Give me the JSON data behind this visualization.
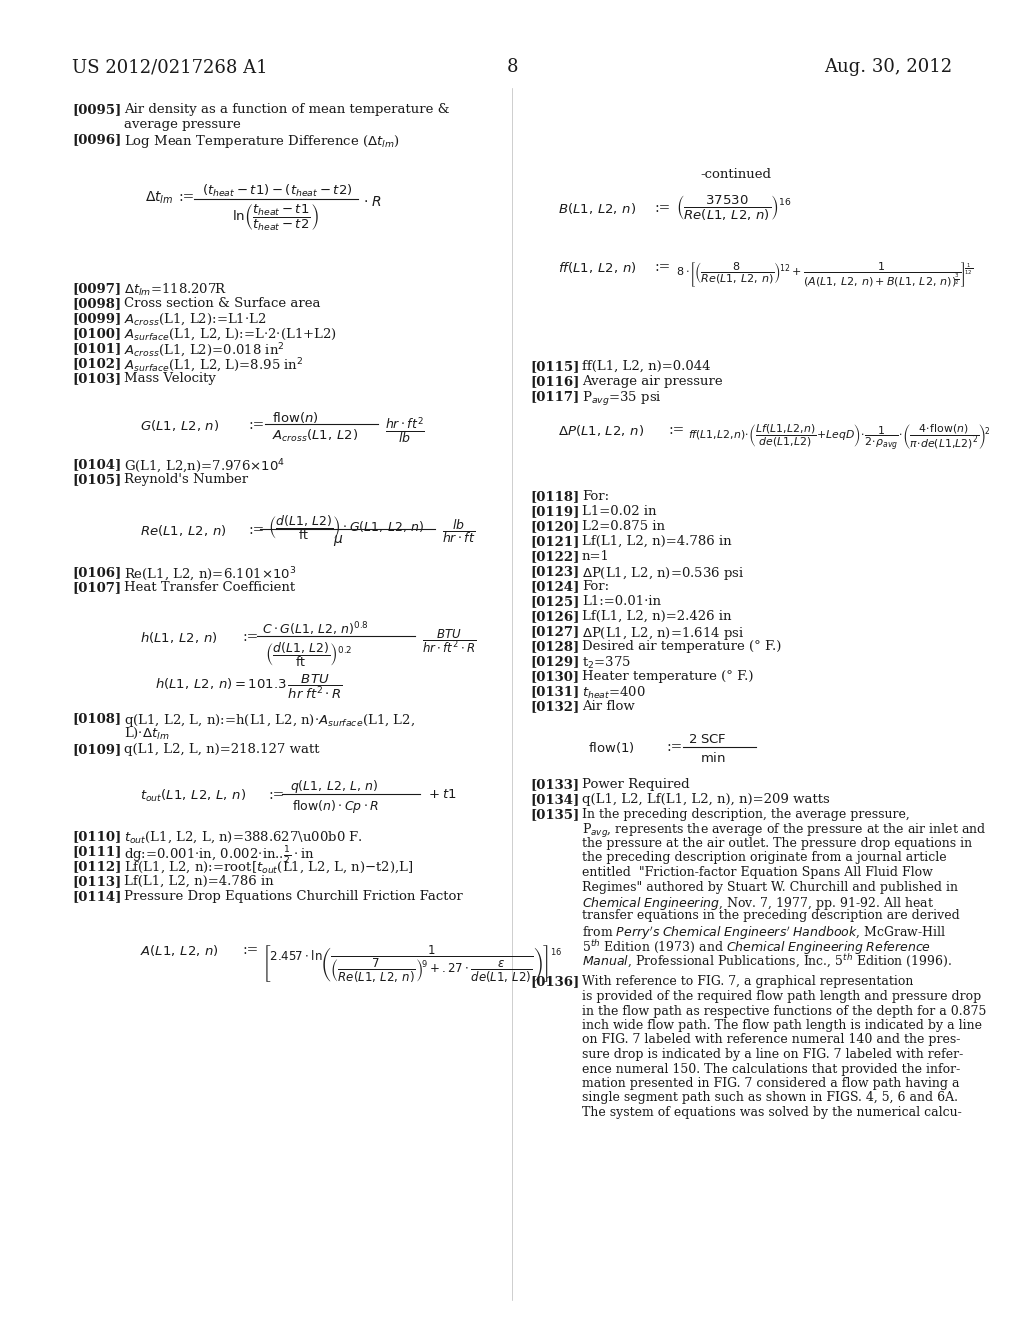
{
  "bg_color": "#ffffff",
  "text_color": "#1a1a1a",
  "header_left": "US 2012/0217268 A1",
  "header_right": "Aug. 30, 2012",
  "page_number": "8",
  "figsize": [
    10.24,
    13.2
  ],
  "dpi": 100
}
